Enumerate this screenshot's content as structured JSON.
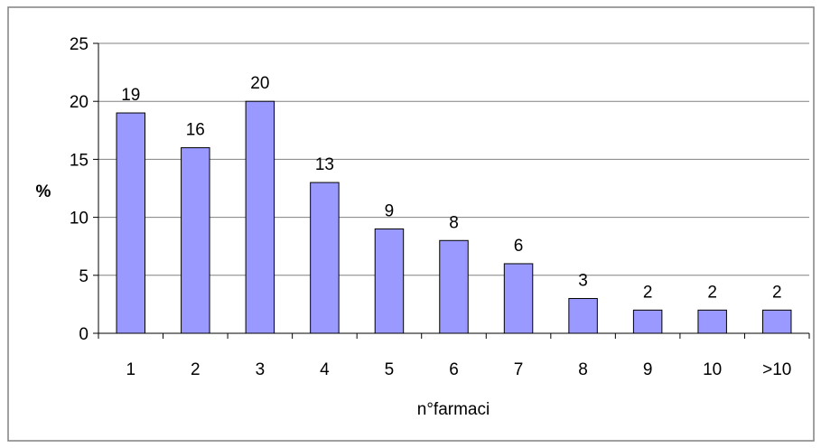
{
  "chart_data": {
    "type": "bar",
    "categories": [
      "1",
      "2",
      "3",
      "4",
      "5",
      "6",
      "7",
      "8",
      "9",
      "10",
      ">10"
    ],
    "values": [
      19,
      16,
      20,
      13,
      9,
      8,
      6,
      3,
      2,
      2,
      2
    ],
    "data_labels": [
      "19",
      "16",
      "20",
      "13",
      "9",
      "8",
      "6",
      "3",
      "2",
      "2",
      "2"
    ],
    "xlabel": "n°farmaci",
    "ylabel": "%",
    "ylim": [
      0,
      25
    ],
    "yticks": [
      "0",
      "5",
      "10",
      "15",
      "20",
      "25"
    ],
    "ytick_values": [
      0,
      5,
      10,
      15,
      20,
      25
    ],
    "grid": "horizontal",
    "legend": "none",
    "colors": {
      "bar_fill": "#9999ff",
      "bar_stroke": "#000000",
      "grid": "#808080",
      "axis": "#000000",
      "frame": "#808080"
    }
  }
}
